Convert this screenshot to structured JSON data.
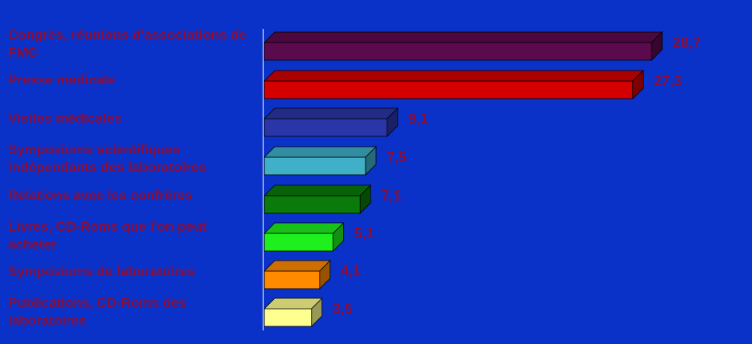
{
  "chart_data": {
    "type": "bar",
    "orientation": "horizontal",
    "style": "3d",
    "categories": [
      "Congrès, réunions d'associations de FMC",
      "Presse médicale",
      "Visites médicales",
      "Symposiums scientifiques indépendants des laboratoires",
      "Relations avec les confrères",
      "Livres, CD-Roms que l'on peut acheter",
      "Symposiums de laboratoires",
      "Publications, CD-Roms des laboratoires"
    ],
    "values": [
      28.7,
      27.3,
      9.1,
      7.5,
      7.1,
      5.1,
      4.1,
      3.5
    ],
    "value_labels": [
      "28,7",
      "27,3",
      "9,1",
      "7,5",
      "7,1",
      "5,1",
      "4,1",
      "3,5"
    ],
    "colors": [
      "#5c0a4e",
      "#d40000",
      "#2a36a8",
      "#40b0c8",
      "#0a7a0a",
      "#1ef01e",
      "#ff8a00",
      "#ffff90"
    ],
    "xlim": [
      0,
      30
    ],
    "grid": false,
    "legend": "none"
  },
  "colors": {
    "background": "#0a32c8",
    "label_text": "#8a0f3c",
    "axis": "#ffffff"
  }
}
